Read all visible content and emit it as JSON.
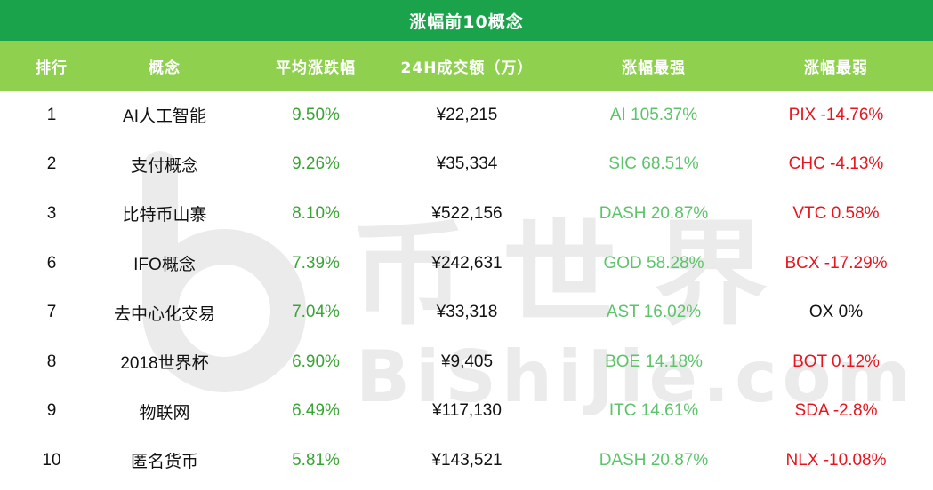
{
  "title": "涨幅前10概念",
  "headers": [
    "排行",
    "概念",
    "平均涨跌幅",
    "24H成交额（万）",
    "涨幅最强",
    "涨幅最弱"
  ],
  "watermark": {
    "cn": "币世界",
    "en": "BiShiJie.com"
  },
  "colors": {
    "title_bg": "#1aa34a",
    "header_bg": "#8fd14f",
    "positive": "#3aa335",
    "strongest": "#5cc46a",
    "negative": "#e8141e"
  },
  "rows": [
    {
      "rank": "1",
      "name": "AI人工智能",
      "avg": "9.50%",
      "volume": "¥22,215",
      "strongest": "AI 105.37%",
      "weakest": "PIX -14.76%",
      "weakest_neutral": false
    },
    {
      "rank": "2",
      "name": "支付概念",
      "avg": "9.26%",
      "volume": "¥35,334",
      "strongest": "SIC 68.51%",
      "weakest": "CHC -4.13%",
      "weakest_neutral": false
    },
    {
      "rank": "3",
      "name": "比特币山寨",
      "avg": "8.10%",
      "volume": "¥522,156",
      "strongest": "DASH 20.87%",
      "weakest": "VTC 0.58%",
      "weakest_neutral": false
    },
    {
      "rank": "6",
      "name": "IFO概念",
      "avg": "7.39%",
      "volume": "¥242,631",
      "strongest": "GOD 58.28%",
      "weakest": "BCX -17.29%",
      "weakest_neutral": false
    },
    {
      "rank": "7",
      "name": "去中心化交易",
      "avg": "7.04%",
      "volume": "¥33,318",
      "strongest": "AST 16.02%",
      "weakest": "OX 0%",
      "weakest_neutral": true
    },
    {
      "rank": "8",
      "name": "2018世界杯",
      "avg": "6.90%",
      "volume": "¥9,405",
      "strongest": "BOE 14.18%",
      "weakest": "BOT 0.12%",
      "weakest_neutral": false
    },
    {
      "rank": "9",
      "name": "物联网",
      "avg": "6.49%",
      "volume": "¥117,130",
      "strongest": "ITC 14.61%",
      "weakest": "SDA -2.8%",
      "weakest_neutral": false
    },
    {
      "rank": "10",
      "name": "匿名货币",
      "avg": "5.81%",
      "volume": "¥143,521",
      "strongest": "DASH 20.87%",
      "weakest": "NLX -10.08%",
      "weakest_neutral": false
    }
  ]
}
